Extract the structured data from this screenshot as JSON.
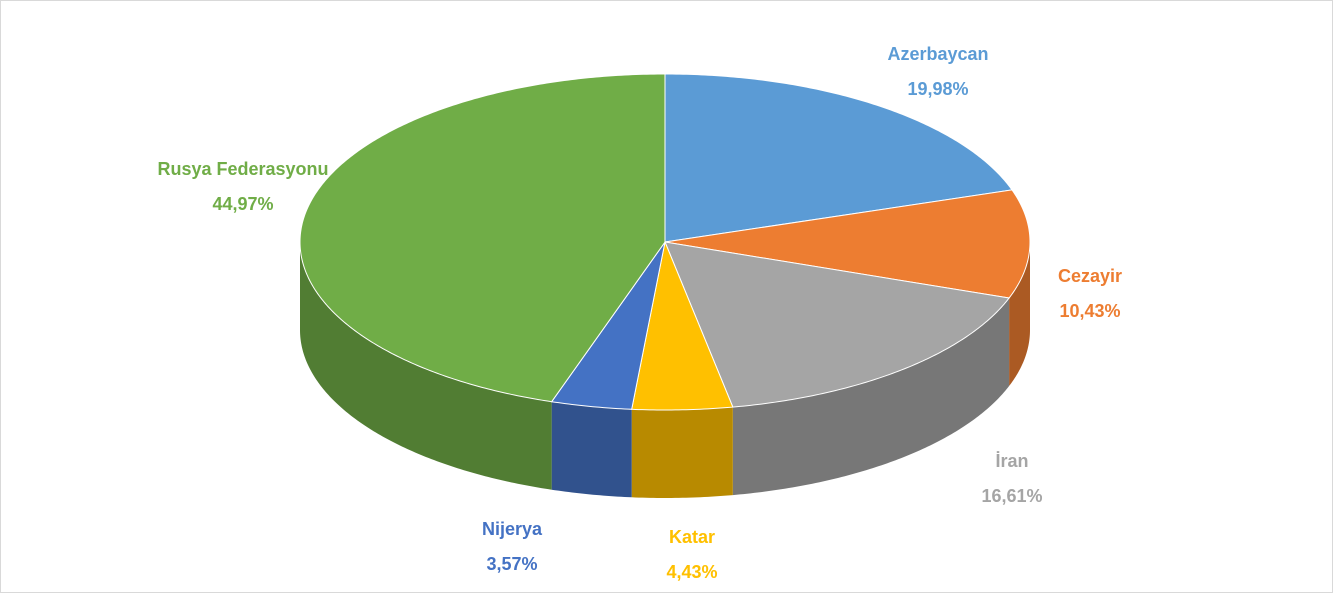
{
  "chart_data": {
    "type": "pie",
    "categories": [
      "Azerbaycan",
      "Cezayir",
      "İran",
      "Katar",
      "Nijerya",
      "Rusya Federasyonu"
    ],
    "values": [
      19.98,
      10.43,
      16.61,
      4.43,
      3.57,
      44.97
    ],
    "value_labels": [
      "19,98%",
      "10,43%",
      "16,61%",
      "4,43%",
      "3,57%",
      "44,97%"
    ],
    "colors": [
      "#5b9bd5",
      "#ed7d31",
      "#a5a5a5",
      "#ffc000",
      "#4472c4",
      "#70ad47"
    ]
  }
}
